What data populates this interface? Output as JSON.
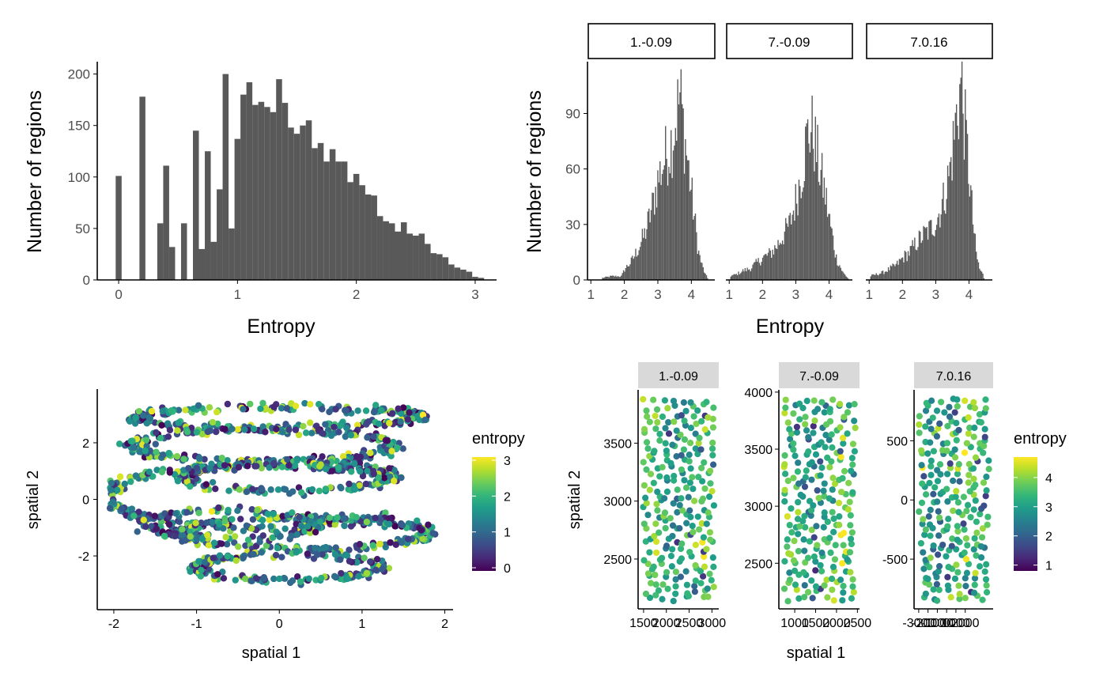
{
  "figure": {
    "colors": {
      "bar": "#595959",
      "axis": "#000000",
      "tick_text": "#4d4d4d",
      "strip_outline": "#000000",
      "strip_fill_gray": "#d9d9d9",
      "viridis": [
        "#440154",
        "#482878",
        "#3E4A89",
        "#31688E",
        "#26828E",
        "#1F9E89",
        "#35B779",
        "#6DCD59",
        "#B4DE2C",
        "#FDE725"
      ]
    }
  },
  "chart_data": [
    {
      "id": "entropy_hist_all",
      "type": "bar",
      "xlabel": "Entropy",
      "ylabel": "Number of regions",
      "xlim": [
        -0.18,
        3.18
      ],
      "ylim": [
        0,
        212
      ],
      "xticks": [
        0,
        1,
        2,
        3
      ],
      "yticks": [
        0,
        50,
        100,
        150,
        200
      ],
      "bin_width": 0.05,
      "bins": [
        {
          "x": 0.0,
          "y": 101
        },
        {
          "x": 0.2,
          "y": 178
        },
        {
          "x": 0.35,
          "y": 55
        },
        {
          "x": 0.4,
          "y": 111
        },
        {
          "x": 0.45,
          "y": 32
        },
        {
          "x": 0.55,
          "y": 55
        },
        {
          "x": 0.65,
          "y": 145
        },
        {
          "x": 0.7,
          "y": 30
        },
        {
          "x": 0.75,
          "y": 125
        },
        {
          "x": 0.8,
          "y": 37
        },
        {
          "x": 0.85,
          "y": 88
        },
        {
          "x": 0.9,
          "y": 200
        },
        {
          "x": 0.95,
          "y": 50
        },
        {
          "x": 1.0,
          "y": 137
        },
        {
          "x": 1.05,
          "y": 180
        },
        {
          "x": 1.1,
          "y": 192
        },
        {
          "x": 1.15,
          "y": 170
        },
        {
          "x": 1.2,
          "y": 173
        },
        {
          "x": 1.25,
          "y": 168
        },
        {
          "x": 1.3,
          "y": 163
        },
        {
          "x": 1.35,
          "y": 195
        },
        {
          "x": 1.4,
          "y": 172
        },
        {
          "x": 1.45,
          "y": 148
        },
        {
          "x": 1.5,
          "y": 142
        },
        {
          "x": 1.55,
          "y": 150
        },
        {
          "x": 1.6,
          "y": 155
        },
        {
          "x": 1.65,
          "y": 128
        },
        {
          "x": 1.7,
          "y": 133
        },
        {
          "x": 1.75,
          "y": 115
        },
        {
          "x": 1.8,
          "y": 127
        },
        {
          "x": 1.85,
          "y": 115
        },
        {
          "x": 1.9,
          "y": 115
        },
        {
          "x": 1.95,
          "y": 95
        },
        {
          "x": 2.0,
          "y": 103
        },
        {
          "x": 2.05,
          "y": 92
        },
        {
          "x": 2.1,
          "y": 83
        },
        {
          "x": 2.15,
          "y": 82
        },
        {
          "x": 2.2,
          "y": 62
        },
        {
          "x": 2.25,
          "y": 57
        },
        {
          "x": 2.3,
          "y": 55
        },
        {
          "x": 2.35,
          "y": 47
        },
        {
          "x": 2.4,
          "y": 56
        },
        {
          "x": 2.45,
          "y": 45
        },
        {
          "x": 2.5,
          "y": 43
        },
        {
          "x": 2.55,
          "y": 45
        },
        {
          "x": 2.6,
          "y": 35
        },
        {
          "x": 2.65,
          "y": 26
        },
        {
          "x": 2.7,
          "y": 25
        },
        {
          "x": 2.75,
          "y": 22
        },
        {
          "x": 2.8,
          "y": 15
        },
        {
          "x": 2.85,
          "y": 12
        },
        {
          "x": 2.9,
          "y": 10
        },
        {
          "x": 2.95,
          "y": 8
        },
        {
          "x": 3.0,
          "y": 3
        },
        {
          "x": 3.05,
          "y": 2
        }
      ]
    },
    {
      "id": "entropy_hist_by_sample",
      "type": "bar",
      "xlabel": "Entropy",
      "ylabel": "Number of regions",
      "xlim": [
        0.9,
        4.7
      ],
      "ylim": [
        0,
        118
      ],
      "xticks": [
        1,
        2,
        3,
        4
      ],
      "yticks": [
        0,
        30,
        60,
        90
      ],
      "bin_width": 0.05,
      "panels": [
        {
          "strip": "1.-0.09",
          "shape": [
            [
              1.3,
              1
            ],
            [
              1.6,
              2
            ],
            [
              1.9,
              2
            ],
            [
              2.0,
              6
            ],
            [
              2.2,
              10
            ],
            [
              2.4,
              17
            ],
            [
              2.6,
              25
            ],
            [
              2.8,
              38
            ],
            [
              3.0,
              55
            ],
            [
              3.2,
              66
            ],
            [
              3.4,
              75
            ],
            [
              3.55,
              90
            ],
            [
              3.65,
              100
            ],
            [
              3.75,
              82
            ],
            [
              3.85,
              68
            ],
            [
              4.0,
              45
            ],
            [
              4.1,
              30
            ],
            [
              4.2,
              15
            ],
            [
              4.3,
              8
            ],
            [
              4.4,
              3
            ],
            [
              4.5,
              0
            ]
          ]
        },
        {
          "strip": "7.-0.09",
          "shape": [
            [
              1.0,
              2
            ],
            [
              1.2,
              3
            ],
            [
              1.4,
              5
            ],
            [
              1.6,
              6
            ],
            [
              1.8,
              9
            ],
            [
              2.0,
              12
            ],
            [
              2.2,
              14
            ],
            [
              2.4,
              18
            ],
            [
              2.6,
              24
            ],
            [
              2.8,
              30
            ],
            [
              3.0,
              44
            ],
            [
              3.2,
              62
            ],
            [
              3.3,
              75
            ],
            [
              3.4,
              82
            ],
            [
              3.5,
              80
            ],
            [
              3.6,
              70
            ],
            [
              3.7,
              60
            ],
            [
              3.85,
              48
            ],
            [
              4.0,
              32
            ],
            [
              4.2,
              12
            ],
            [
              4.4,
              4
            ],
            [
              4.55,
              1
            ],
            [
              4.6,
              0
            ]
          ]
        },
        {
          "strip": "7.0.16",
          "shape": [
            [
              1.0,
              2
            ],
            [
              1.2,
              3
            ],
            [
              1.4,
              4
            ],
            [
              1.6,
              6
            ],
            [
              1.8,
              8
            ],
            [
              2.0,
              12
            ],
            [
              2.2,
              15
            ],
            [
              2.4,
              20
            ],
            [
              2.6,
              24
            ],
            [
              2.8,
              27
            ],
            [
              3.0,
              32
            ],
            [
              3.2,
              42
            ],
            [
              3.4,
              58
            ],
            [
              3.5,
              72
            ],
            [
              3.6,
              88
            ],
            [
              3.7,
              100
            ],
            [
              3.75,
              108
            ],
            [
              3.8,
              95
            ],
            [
              3.9,
              75
            ],
            [
              4.0,
              55
            ],
            [
              4.1,
              32
            ],
            [
              4.2,
              14
            ],
            [
              4.3,
              6
            ],
            [
              4.4,
              3
            ],
            [
              4.45,
              0
            ]
          ]
        }
      ]
    },
    {
      "id": "spatial_entropy_embedding",
      "type": "scatter",
      "xlabel": "spatial 1",
      "ylabel": "spatial 2",
      "xlim": [
        -2.2,
        2.1
      ],
      "ylim": [
        -3.9,
        3.9
      ],
      "xticks": [
        -2,
        -1,
        0,
        1,
        2
      ],
      "yticks": [
        -2,
        0,
        2
      ],
      "color_by": "entropy",
      "legend": {
        "title": "entropy",
        "position": "right",
        "range": [
          0,
          3
        ],
        "ticks": [
          0,
          1,
          2,
          3
        ]
      }
    },
    {
      "id": "spatial_entropy_by_sample",
      "type": "scatter",
      "xlabel": "spatial 1",
      "ylabel": "spatial 2",
      "color_by": "entropy",
      "legend": {
        "title": "entropy",
        "position": "right",
        "range": [
          0.8,
          4.7
        ],
        "ticks": [
          1,
          2,
          3,
          4
        ]
      },
      "panels": [
        {
          "strip": "1.-0.09",
          "xlim": [
            1380,
            3150
          ],
          "ylim": [
            2070,
            3960
          ],
          "xticks": [
            1500,
            2000,
            2500,
            3000
          ],
          "xtick_labels": [
            "1500",
            "2000",
            "2500",
            "3000"
          ],
          "yticks": [
            2500,
            3000,
            3500
          ],
          "ytick_labels": [
            "2500",
            "3000",
            "3500"
          ]
        },
        {
          "strip": "7.-0.09",
          "xlim": [
            620,
            2550
          ],
          "ylim": [
            2100,
            4020
          ],
          "xticks": [
            1000,
            1500,
            2000,
            2500
          ],
          "xtick_labels": [
            "1000",
            "1500",
            "2000",
            "2500"
          ],
          "yticks": [
            2500,
            3000,
            3500,
            4000
          ],
          "ytick_labels": [
            "2500",
            "3000",
            "3500",
            "4000"
          ]
        },
        {
          "strip": "7.0.16",
          "xlim": [
            -3500,
            5000
          ],
          "ylim": [
            -920,
            930
          ],
          "xticks": [
            -3000,
            -2000,
            -1000,
            0,
            1000,
            2000
          ],
          "xtick_labels": [
            "-3000",
            "-2000",
            "-1000",
            "0",
            "1000",
            "2000"
          ],
          "yticks": [
            -500,
            0,
            500
          ],
          "ytick_labels": [
            "-500",
            "0",
            "500"
          ]
        }
      ]
    }
  ]
}
